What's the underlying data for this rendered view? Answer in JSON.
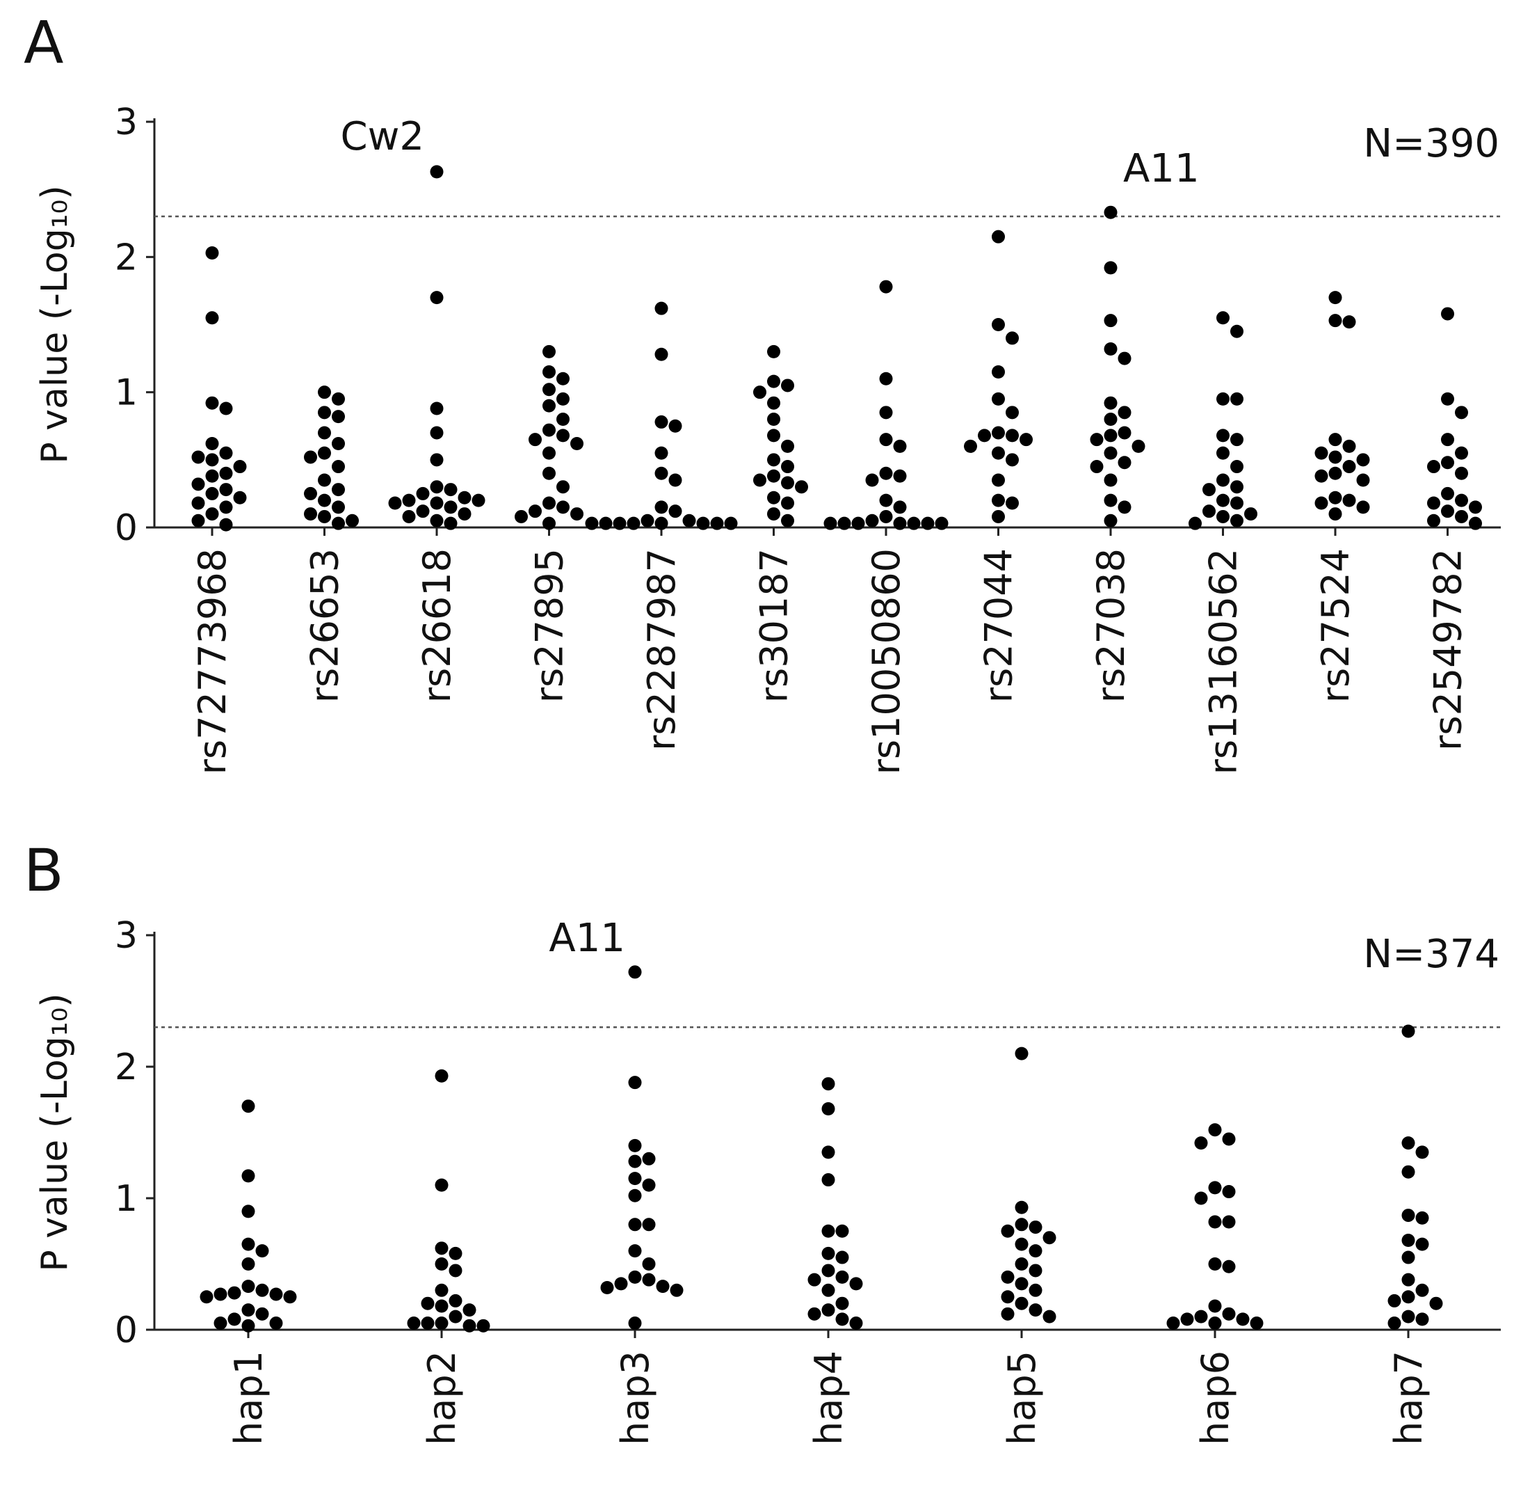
{
  "chart_data": [
    {
      "type": "strip",
      "panel": "A",
      "y_label": "P value (-Log₁₀)",
      "sample_size_label": "N=390",
      "annotations": [
        "Cw2",
        "A11"
      ],
      "color": "#000000",
      "ylim": [
        0,
        3
      ],
      "yticks": [
        0,
        1,
        2,
        3
      ],
      "threshold": 2.3,
      "categories": [
        "rs72773968",
        "rs26653",
        "rs26618",
        "rs27895",
        "rs2287987",
        "rs30187",
        "rs10050860",
        "rs27044",
        "rs27038",
        "rs13160562",
        "rs27524",
        "rs2549782"
      ],
      "values": [
        [
          2.03,
          1.55,
          0.92,
          0.88,
          0.62,
          0.55,
          0.52,
          0.5,
          0.45,
          0.4,
          0.38,
          0.32,
          0.28,
          0.25,
          0.22,
          0.18,
          0.15,
          0.1,
          0.05,
          0.02
        ],
        [
          1.0,
          0.95,
          0.85,
          0.82,
          0.7,
          0.62,
          0.55,
          0.52,
          0.45,
          0.35,
          0.28,
          0.25,
          0.2,
          0.15,
          0.1,
          0.08,
          0.05,
          0.03
        ],
        [
          2.63,
          1.7,
          0.88,
          0.7,
          0.5,
          0.3,
          0.28,
          0.25,
          0.22,
          0.2,
          0.2,
          0.18,
          0.18,
          0.15,
          0.12,
          0.1,
          0.08,
          0.05,
          0.03
        ],
        [
          1.3,
          1.15,
          1.1,
          1.02,
          0.95,
          0.9,
          0.8,
          0.72,
          0.68,
          0.65,
          0.62,
          0.55,
          0.4,
          0.3,
          0.18,
          0.15,
          0.12,
          0.1,
          0.08,
          0.03
        ],
        [
          1.62,
          1.28,
          0.78,
          0.75,
          0.55,
          0.4,
          0.35,
          0.15,
          0.12,
          0.05,
          0.05,
          0.03,
          0.03,
          0.03,
          0.03,
          0.03,
          0.03,
          0.03,
          0.03
        ],
        [
          1.3,
          1.08,
          1.05,
          1.0,
          0.92,
          0.8,
          0.68,
          0.6,
          0.5,
          0.45,
          0.38,
          0.35,
          0.33,
          0.3,
          0.22,
          0.18,
          0.1,
          0.05
        ],
        [
          1.78,
          1.1,
          0.85,
          0.65,
          0.6,
          0.4,
          0.38,
          0.35,
          0.2,
          0.15,
          0.08,
          0.05,
          0.03,
          0.03,
          0.03,
          0.03,
          0.03,
          0.03,
          0.03
        ],
        [
          2.15,
          1.5,
          1.4,
          1.15,
          0.95,
          0.85,
          0.7,
          0.68,
          0.68,
          0.65,
          0.6,
          0.55,
          0.5,
          0.35,
          0.2,
          0.18,
          0.08
        ],
        [
          2.33,
          1.92,
          1.53,
          1.32,
          1.25,
          0.92,
          0.85,
          0.8,
          0.7,
          0.68,
          0.65,
          0.6,
          0.55,
          0.48,
          0.45,
          0.35,
          0.2,
          0.15,
          0.05
        ],
        [
          1.55,
          1.45,
          0.95,
          0.95,
          0.68,
          0.65,
          0.55,
          0.45,
          0.35,
          0.3,
          0.28,
          0.2,
          0.18,
          0.12,
          0.1,
          0.08,
          0.05,
          0.03
        ],
        [
          1.7,
          1.53,
          1.52,
          0.65,
          0.6,
          0.55,
          0.52,
          0.5,
          0.45,
          0.4,
          0.38,
          0.35,
          0.22,
          0.2,
          0.18,
          0.15,
          0.1
        ],
        [
          1.58,
          0.95,
          0.85,
          0.65,
          0.55,
          0.48,
          0.45,
          0.4,
          0.25,
          0.2,
          0.18,
          0.15,
          0.12,
          0.08,
          0.05,
          0.03
        ]
      ]
    },
    {
      "type": "strip",
      "panel": "B",
      "y_label": "P value (-Log₁₀)",
      "sample_size_label": "N=374",
      "annotations": [
        "A11"
      ],
      "color": "#000000",
      "ylim": [
        0,
        3
      ],
      "yticks": [
        0,
        1,
        2,
        3
      ],
      "threshold": 2.3,
      "categories": [
        "hap1",
        "hap2",
        "hap3",
        "hap4",
        "hap5",
        "hap6",
        "hap7"
      ],
      "values": [
        [
          1.7,
          1.17,
          0.9,
          0.65,
          0.6,
          0.5,
          0.33,
          0.3,
          0.28,
          0.27,
          0.27,
          0.25,
          0.25,
          0.15,
          0.12,
          0.08,
          0.05,
          0.05,
          0.03
        ],
        [
          1.93,
          1.1,
          0.62,
          0.58,
          0.5,
          0.45,
          0.3,
          0.22,
          0.2,
          0.18,
          0.15,
          0.1,
          0.05,
          0.05,
          0.05,
          0.03,
          0.03
        ],
        [
          2.72,
          1.88,
          1.4,
          1.3,
          1.28,
          1.15,
          1.1,
          1.02,
          0.8,
          0.8,
          0.6,
          0.5,
          0.4,
          0.38,
          0.35,
          0.33,
          0.32,
          0.3,
          0.05
        ],
        [
          1.87,
          1.68,
          1.35,
          1.14,
          0.75,
          0.75,
          0.58,
          0.55,
          0.45,
          0.4,
          0.38,
          0.35,
          0.3,
          0.2,
          0.15,
          0.12,
          0.08,
          0.05
        ],
        [
          2.1,
          0.93,
          0.8,
          0.78,
          0.75,
          0.7,
          0.65,
          0.6,
          0.5,
          0.45,
          0.4,
          0.35,
          0.3,
          0.25,
          0.2,
          0.15,
          0.12,
          0.1
        ],
        [
          1.52,
          1.45,
          1.42,
          1.08,
          1.05,
          1.0,
          0.82,
          0.82,
          0.5,
          0.48,
          0.18,
          0.12,
          0.1,
          0.08,
          0.08,
          0.05,
          0.05,
          0.05
        ],
        [
          2.27,
          1.42,
          1.35,
          1.2,
          0.87,
          0.85,
          0.68,
          0.65,
          0.55,
          0.38,
          0.3,
          0.25,
          0.22,
          0.2,
          0.1,
          0.08,
          0.05
        ]
      ]
    }
  ]
}
